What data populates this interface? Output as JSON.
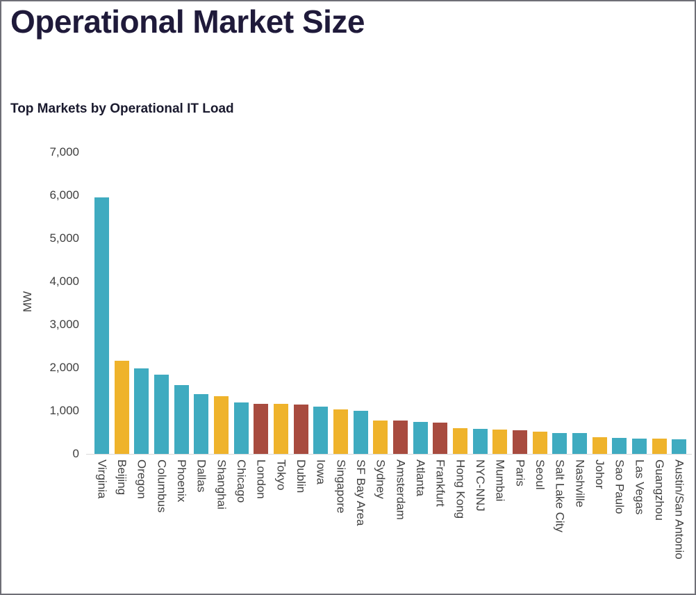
{
  "page": {
    "title": "Operational Market Size"
  },
  "chart_data": {
    "type": "bar",
    "title": "Top Markets by Operational IT Load",
    "xlabel": "",
    "ylabel": "MW",
    "ylim": [
      0,
      7000
    ],
    "ytick_labels": [
      "0",
      "1,000",
      "2,000",
      "3,000",
      "4,000",
      "5,000",
      "6,000",
      "7,000"
    ],
    "grid": false,
    "legend": "none",
    "palette": {
      "teal": "#3fabc0",
      "gold": "#efb32b",
      "red": "#a84b3f"
    },
    "categories": [
      "Virginia",
      "Beijing",
      "Oregon",
      "Columbus",
      "Phoenix",
      "Dallas",
      "Shanghai",
      "Chicago",
      "London",
      "Tokyo",
      "Dublin",
      "Iowa",
      "Singapore",
      "SF Bay Area",
      "Sydney",
      "Amsterdam",
      "Atlanta",
      "Frankfurt",
      "Hong Kong",
      "NYC-NNJ",
      "Mumbai",
      "Paris",
      "Seoul",
      "Salt Lake City",
      "Nashville",
      "Johor",
      "Sao Paulo",
      "Las Vegas",
      "Guangzhou",
      "Austin/San Antonio"
    ],
    "values": [
      5950,
      2160,
      1980,
      1845,
      1600,
      1395,
      1335,
      1190,
      1165,
      1155,
      1140,
      1090,
      1035,
      1000,
      780,
      775,
      750,
      720,
      590,
      575,
      560,
      550,
      510,
      490,
      485,
      390,
      370,
      350,
      350,
      340
    ],
    "bar_color_names": [
      "teal",
      "gold",
      "teal",
      "teal",
      "teal",
      "teal",
      "gold",
      "teal",
      "red",
      "gold",
      "red",
      "teal",
      "gold",
      "teal",
      "gold",
      "red",
      "teal",
      "red",
      "gold",
      "teal",
      "gold",
      "red",
      "gold",
      "teal",
      "teal",
      "gold",
      "teal",
      "teal",
      "gold",
      "teal"
    ]
  }
}
